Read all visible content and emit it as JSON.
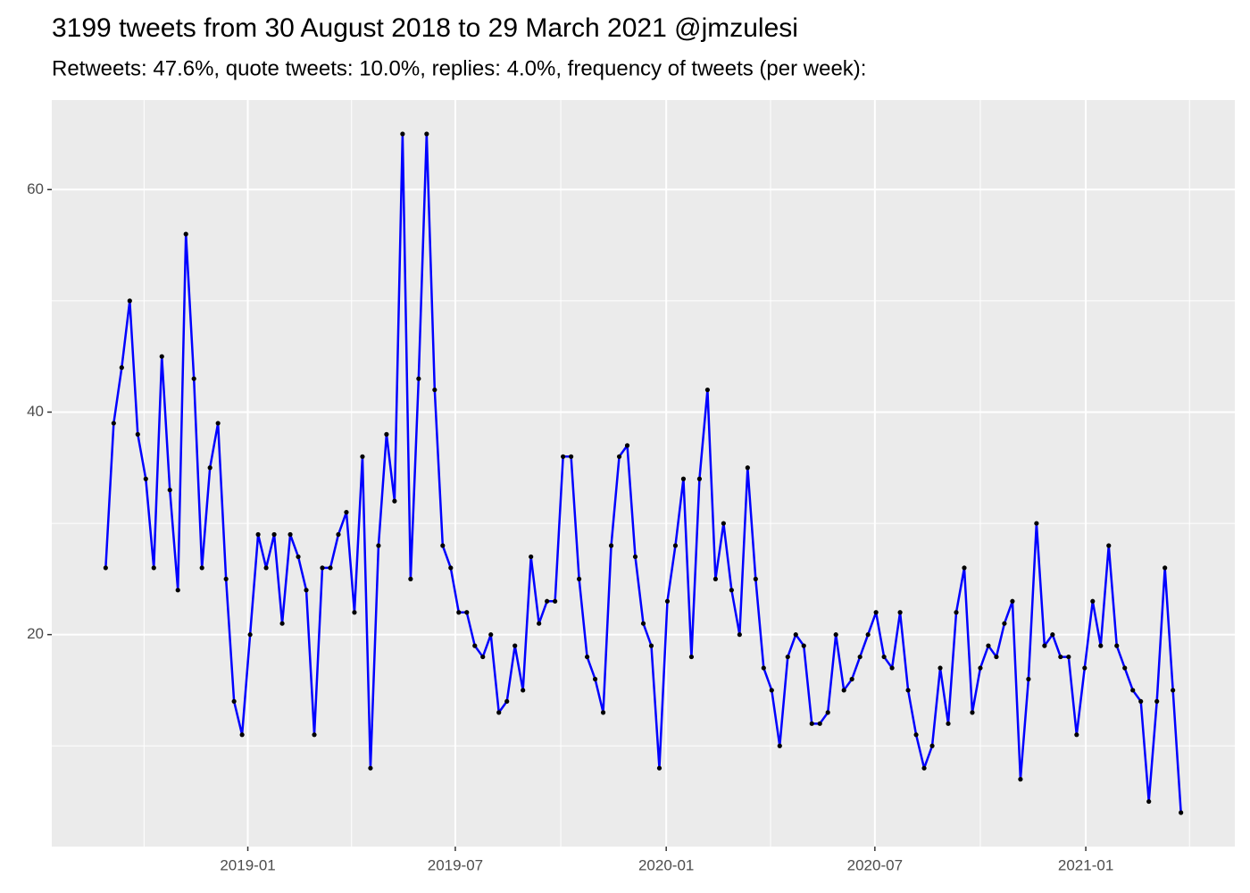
{
  "chart_data": {
    "type": "line",
    "title": "3199 tweets from 30 August 2018 to 29 March 2021 @jmzulesi",
    "subtitle": "Retweets: 47.6%, quote tweets: 10.0%, replies: 4.0%, frequency of tweets (per week):",
    "x": [
      "2018-08-30",
      "2018-09-06",
      "2018-09-13",
      "2018-09-20",
      "2018-09-27",
      "2018-10-04",
      "2018-10-11",
      "2018-10-18",
      "2018-10-25",
      "2018-11-01",
      "2018-11-08",
      "2018-11-15",
      "2018-11-22",
      "2018-11-29",
      "2018-12-06",
      "2018-12-13",
      "2018-12-20",
      "2018-12-27",
      "2019-01-03",
      "2019-01-10",
      "2019-01-17",
      "2019-01-24",
      "2019-01-31",
      "2019-02-07",
      "2019-02-14",
      "2019-02-21",
      "2019-02-28",
      "2019-03-07",
      "2019-03-14",
      "2019-03-21",
      "2019-03-28",
      "2019-04-04",
      "2019-04-11",
      "2019-04-18",
      "2019-04-25",
      "2019-05-02",
      "2019-05-09",
      "2019-05-16",
      "2019-05-23",
      "2019-05-30",
      "2019-06-06",
      "2019-06-13",
      "2019-06-20",
      "2019-06-27",
      "2019-07-04",
      "2019-07-11",
      "2019-07-18",
      "2019-07-25",
      "2019-08-01",
      "2019-08-08",
      "2019-08-15",
      "2019-08-22",
      "2019-08-29",
      "2019-09-05",
      "2019-09-12",
      "2019-09-19",
      "2019-09-26",
      "2019-10-03",
      "2019-10-10",
      "2019-10-17",
      "2019-10-24",
      "2019-10-31",
      "2019-11-07",
      "2019-11-14",
      "2019-11-21",
      "2019-11-28",
      "2019-12-05",
      "2019-12-12",
      "2019-12-19",
      "2019-12-26",
      "2020-01-02",
      "2020-01-09",
      "2020-01-16",
      "2020-01-23",
      "2020-01-30",
      "2020-02-06",
      "2020-02-13",
      "2020-02-20",
      "2020-02-27",
      "2020-03-05",
      "2020-03-12",
      "2020-03-19",
      "2020-03-26",
      "2020-04-02",
      "2020-04-09",
      "2020-04-16",
      "2020-04-23",
      "2020-04-30",
      "2020-05-07",
      "2020-05-14",
      "2020-05-21",
      "2020-05-28",
      "2020-06-04",
      "2020-06-11",
      "2020-06-18",
      "2020-06-25",
      "2020-07-02",
      "2020-07-09",
      "2020-07-16",
      "2020-07-23",
      "2020-07-30",
      "2020-08-06",
      "2020-08-13",
      "2020-08-20",
      "2020-08-27",
      "2020-09-03",
      "2020-09-10",
      "2020-09-17",
      "2020-09-24",
      "2020-10-01",
      "2020-10-08",
      "2020-10-15",
      "2020-10-22",
      "2020-10-29",
      "2020-11-05",
      "2020-11-12",
      "2020-11-19",
      "2020-11-26",
      "2020-12-03",
      "2020-12-10",
      "2020-12-17",
      "2020-12-24",
      "2020-12-31",
      "2021-01-07",
      "2021-01-14",
      "2021-01-21",
      "2021-01-28",
      "2021-02-04",
      "2021-02-11",
      "2021-02-18",
      "2021-02-25",
      "2021-03-04",
      "2021-03-11",
      "2021-03-18",
      "2021-03-25"
    ],
    "values": [
      26,
      39,
      44,
      50,
      38,
      34,
      26,
      45,
      33,
      24,
      56,
      43,
      26,
      35,
      39,
      25,
      14,
      11,
      20,
      29,
      26,
      29,
      21,
      29,
      27,
      24,
      11,
      26,
      26,
      29,
      31,
      22,
      36,
      8,
      28,
      38,
      32,
      65,
      25,
      43,
      65,
      42,
      28,
      26,
      22,
      22,
      19,
      18,
      20,
      13,
      14,
      19,
      15,
      27,
      21,
      23,
      23,
      36,
      36,
      25,
      18,
      16,
      13,
      28,
      36,
      37,
      27,
      21,
      19,
      8,
      23,
      28,
      34,
      18,
      34,
      42,
      25,
      30,
      24,
      20,
      35,
      25,
      17,
      15,
      10,
      18,
      20,
      19,
      12,
      12,
      13,
      20,
      15,
      16,
      18,
      20,
      22,
      18,
      17,
      22,
      15,
      11,
      8,
      10,
      17,
      12,
      22,
      26,
      13,
      17,
      19,
      18,
      21,
      23,
      7,
      16,
      30,
      19,
      20,
      18,
      18,
      11,
      17,
      23,
      19,
      28,
      19,
      17,
      15,
      14,
      5,
      14,
      26,
      15,
      4
    ],
    "color": "#0000ff",
    "marker_color": "#000000",
    "xlim": [
      "2018-07-14",
      "2021-05-11"
    ],
    "xticks": [
      "2019-01",
      "2019-07",
      "2020-01",
      "2020-07",
      "2021-01"
    ],
    "ylim": [
      0.95,
      68.05
    ],
    "yticks": [
      20,
      40,
      60
    ],
    "grid": true
  }
}
